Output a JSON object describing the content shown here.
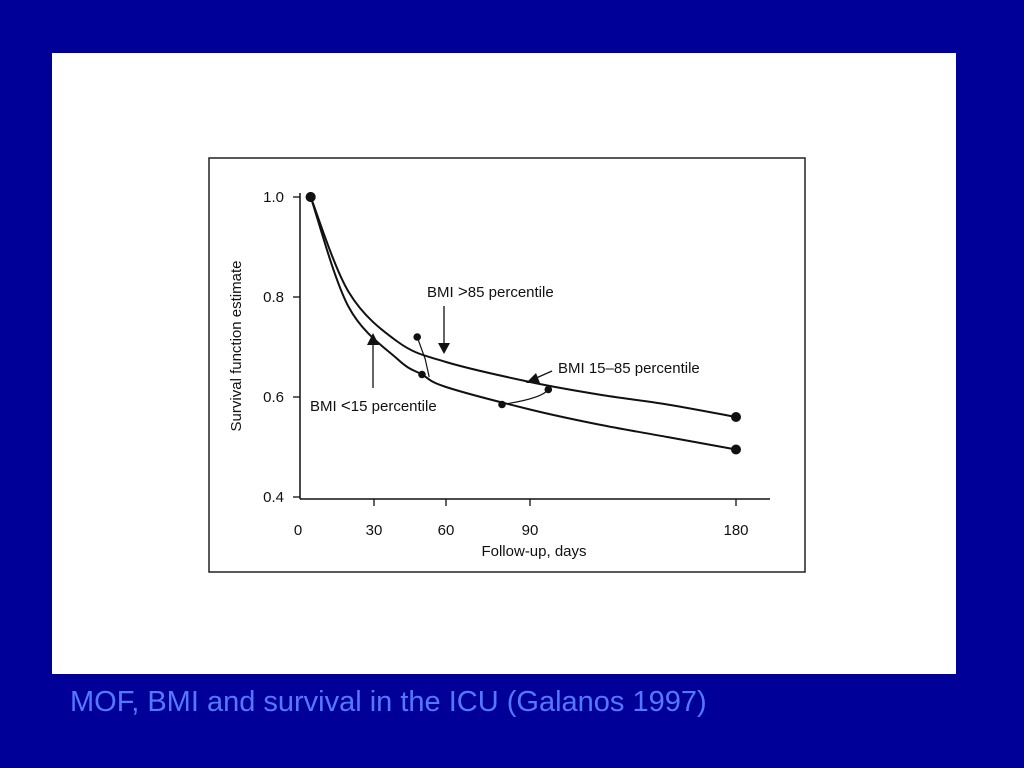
{
  "slide": {
    "background_color": "#000099",
    "panel_color": "#ffffff",
    "caption": "MOF, BMI and survival in the ICU (Galanos 1997)",
    "caption_color": "#5577ff"
  },
  "chart_data": {
    "type": "line",
    "title": "",
    "xlabel": "Follow-up, days",
    "ylabel": "Survival function estimate",
    "x_ticks": [
      "0",
      "30",
      "60",
      "90",
      "180"
    ],
    "y_ticks": [
      "1.0",
      "0.8",
      "0.6",
      "0.4"
    ],
    "ylim": [
      0.4,
      1.0
    ],
    "x_scale": "broken",
    "grid": false,
    "series": [
      {
        "name": "BMI >85 percentile",
        "x": [
          5,
          20,
          40,
          60,
          90,
          120,
          150,
          180
        ],
        "y": [
          1.0,
          0.81,
          0.71,
          0.67,
          0.63,
          0.605,
          0.585,
          0.56
        ]
      },
      {
        "name": "BMI 15–85 percentile",
        "x": [
          48,
          80,
          98
        ],
        "y": [
          0.72,
          0.585,
          0.615
        ]
      },
      {
        "name": "BMI <15 percentile",
        "x": [
          5,
          20,
          40,
          50,
          60,
          90,
          120,
          150,
          180
        ],
        "y": [
          1.0,
          0.78,
          0.675,
          0.645,
          0.62,
          0.575,
          0.545,
          0.52,
          0.495
        ]
      }
    ],
    "annotations": [
      {
        "label_prefix": "BMI ",
        "label_symbol": ">",
        "label_suffix": "85 percentile"
      },
      {
        "label_prefix": "BMI ",
        "label_symbol": "",
        "label_suffix": "15–85 percentile"
      },
      {
        "label_prefix": "BMI ",
        "label_symbol": "<",
        "label_suffix": "15 percentile"
      }
    ]
  }
}
